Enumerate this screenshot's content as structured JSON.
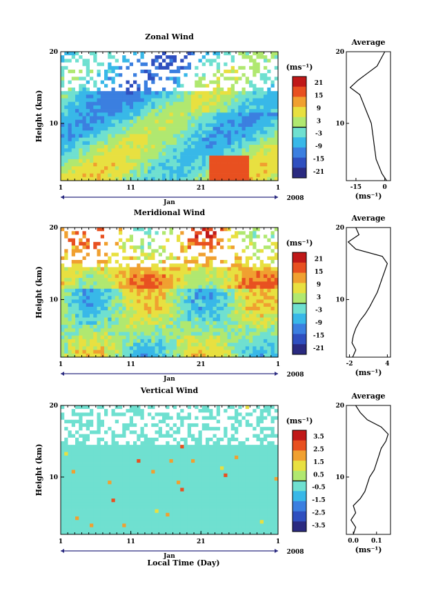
{
  "panels": [
    {
      "title": "Zonal Wind",
      "ylabel": "Height (km)",
      "y_ticks": [
        "20",
        "10"
      ],
      "x_ticks": [
        "1",
        "11",
        "21",
        "1"
      ],
      "month": "Jan",
      "year": "2008",
      "unit": "(ms⁻¹)",
      "colorbar_ticks": [
        "21",
        "15",
        "9",
        "3",
        "-3",
        "-9",
        "-15",
        "-21"
      ],
      "avg_title": "Average",
      "avg_y_ticks": [
        "20",
        "10"
      ],
      "avg_x_ticks": [
        "-15",
        "0"
      ],
      "avg_unit": "(ms⁻¹)"
    },
    {
      "title": "Meridional Wind",
      "ylabel": "Height (km)",
      "y_ticks": [
        "20",
        "10"
      ],
      "x_ticks": [
        "1",
        "11",
        "21",
        "1"
      ],
      "month": "Jan",
      "year": "2008",
      "unit": "(ms⁻¹)",
      "colorbar_ticks": [
        "21",
        "15",
        "9",
        "3",
        "-3",
        "-9",
        "-15",
        "-21"
      ],
      "avg_title": "Average",
      "avg_y_ticks": [
        "20",
        "10"
      ],
      "avg_x_ticks": [
        "-2",
        "4"
      ],
      "avg_unit": "(ms⁻¹)"
    },
    {
      "title": "Vertical Wind",
      "ylabel": "Height (km)",
      "y_ticks": [
        "20",
        "10"
      ],
      "x_ticks": [
        "1",
        "11",
        "21",
        "1"
      ],
      "month": "Jan",
      "year": "2008",
      "unit": "(ms⁻¹)",
      "colorbar_ticks": [
        "3.5",
        "2.5",
        "1.5",
        "0.5",
        "-0.5",
        "-1.5",
        "-2.5",
        "-3.5"
      ],
      "avg_title": "Average",
      "avg_y_ticks": [
        "20",
        "10"
      ],
      "avg_x_ticks": [
        "0.0",
        "0.1"
      ],
      "avg_unit": "(ms⁻¹)"
    }
  ],
  "xlabel": "Local Time (Day)",
  "colors": {
    "colormap": [
      "#2a2a80",
      "#2f4fbf",
      "#3b7fe0",
      "#38b8e8",
      "#6fe0d0",
      "#b0e870",
      "#e8e040",
      "#f0a030",
      "#e85020",
      "#c01818"
    ]
  },
  "chart_data": [
    {
      "type": "heatmap",
      "title": "Zonal Wind",
      "ylabel": "Height (km)",
      "x_range_day": [
        1,
        32
      ],
      "y_range_km": [
        2,
        20
      ],
      "colorbar_range": [
        -24,
        24
      ],
      "average_profile": {
        "title": "Average",
        "x_range": [
          -20,
          3
        ],
        "height_km": [
          2,
          3,
          4,
          5,
          6,
          7,
          8,
          9,
          10,
          11,
          12,
          13,
          14,
          15,
          16,
          17,
          18,
          19,
          20
        ],
        "values": [
          1.0,
          -1.5,
          -3.0,
          -4.5,
          -5.0,
          -5.5,
          -6.0,
          -6.5,
          -7.0,
          -8.5,
          -10.0,
          -11.5,
          -13.0,
          -18.0,
          -14.0,
          -9.0,
          -4.0,
          -2.0,
          0.0
        ]
      }
    },
    {
      "type": "heatmap",
      "title": "Meridional Wind",
      "ylabel": "Height (km)",
      "x_range_day": [
        1,
        32
      ],
      "y_range_km": [
        2,
        20
      ],
      "colorbar_range": [
        -24,
        24
      ],
      "average_profile": {
        "title": "Average",
        "x_range": [
          -2.5,
          4.5
        ],
        "height_km": [
          2,
          3,
          4,
          5,
          6,
          7,
          8,
          9,
          10,
          11,
          12,
          13,
          14,
          15,
          16,
          17,
          18,
          19,
          20
        ],
        "values": [
          -1.5,
          -1.0,
          -1.6,
          -1.4,
          -1.0,
          -0.4,
          0.5,
          1.2,
          1.8,
          2.4,
          2.8,
          3.2,
          3.6,
          4.0,
          3.2,
          -1.0,
          -2.2,
          -0.5,
          -1.0
        ]
      }
    },
    {
      "type": "heatmap",
      "title": "Vertical Wind",
      "ylabel": "Height (km)",
      "x_range_day": [
        1,
        32
      ],
      "y_range_km": [
        2,
        20
      ],
      "colorbar_range": [
        -4,
        4
      ],
      "average_profile": {
        "title": "Average",
        "x_range": [
          -0.03,
          0.16
        ],
        "height_km": [
          2,
          3,
          4,
          5,
          6,
          7,
          8,
          9,
          10,
          11,
          12,
          13,
          14,
          15,
          16,
          17,
          18,
          19,
          20
        ],
        "values": [
          0.0,
          0.01,
          -0.01,
          0.01,
          0.0,
          0.03,
          0.05,
          0.06,
          0.07,
          0.09,
          0.1,
          0.11,
          0.12,
          0.14,
          0.15,
          0.12,
          0.06,
          0.03,
          0.01
        ]
      }
    }
  ]
}
